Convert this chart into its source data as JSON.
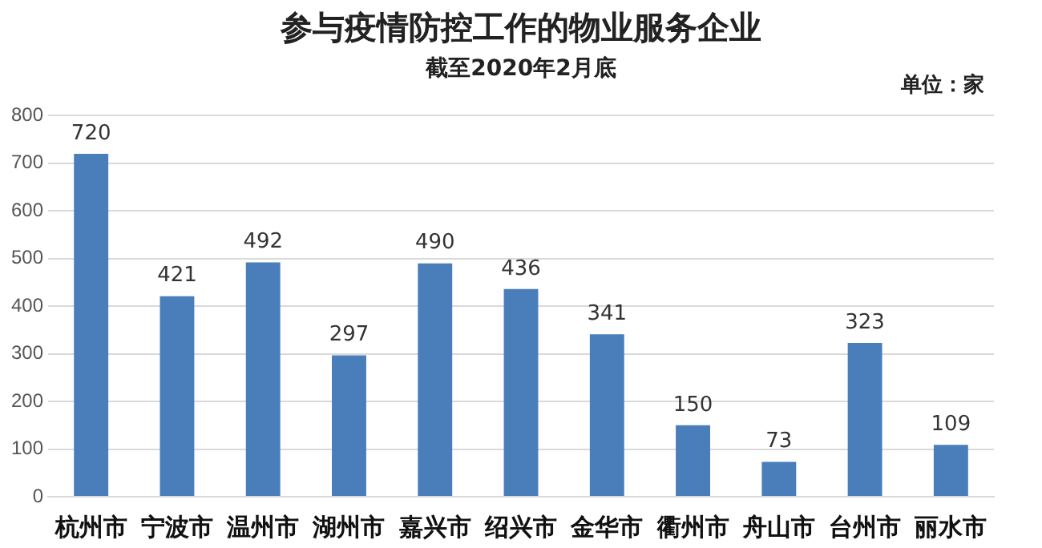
{
  "chart_data": {
    "type": "bar",
    "title": "参与疫情防控工作的物业服务企业",
    "subtitle": "截至2020年2月底",
    "annotations": [
      "单位：家"
    ],
    "categories": [
      "杭州市",
      "宁波市",
      "温州市",
      "湖州市",
      "嘉兴市",
      "绍兴市",
      "金华市",
      "衢州市",
      "舟山市",
      "台州市",
      "丽水市"
    ],
    "values": [
      720,
      421,
      492,
      297,
      490,
      436,
      341,
      150,
      73,
      323,
      109
    ],
    "color": "#4a7ebb",
    "ylim": [
      0,
      800
    ],
    "yticks": [
      0,
      100,
      200,
      300,
      400,
      500,
      600,
      700,
      800
    ],
    "grid": "y",
    "data_labels": true,
    "legend": false
  }
}
